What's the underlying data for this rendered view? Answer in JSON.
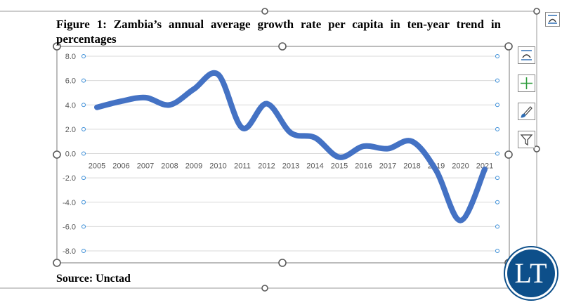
{
  "figure": {
    "title": "Figure 1: Zambia’s annual average growth rate per capita in ten-year trend in percentages",
    "source": "Source: Unctad"
  },
  "logo": {
    "text": "LT",
    "color": "#0d4f8a"
  },
  "side_buttons": [
    {
      "icon": "layout-options-icon"
    },
    {
      "icon": "chart-elements-plus-icon"
    },
    {
      "icon": "chart-styles-brush-icon"
    },
    {
      "icon": "chart-filters-funnel-icon"
    }
  ],
  "chart_data": {
    "type": "line",
    "categories": [
      "2005",
      "2006",
      "2007",
      "2008",
      "2009",
      "2010",
      "2011",
      "2012",
      "2013",
      "2014",
      "2015",
      "2016",
      "2017",
      "2018",
      "2019",
      "2020",
      "2021"
    ],
    "series": [
      {
        "values": [
          3.8,
          4.3,
          4.6,
          4.0,
          5.3,
          6.5,
          2.1,
          4.1,
          1.7,
          1.3,
          -0.3,
          0.6,
          0.4,
          1.0,
          -1.4,
          -5.5,
          -1.3
        ],
        "color": "#4472c4"
      }
    ],
    "ylim": [
      -8,
      8
    ],
    "yticks": [
      "8.0",
      "6.0",
      "4.0",
      "2.0",
      "0.0",
      "-2.0",
      "-4.0",
      "-6.0",
      "-8.0"
    ],
    "grid": true,
    "smooth": true
  }
}
